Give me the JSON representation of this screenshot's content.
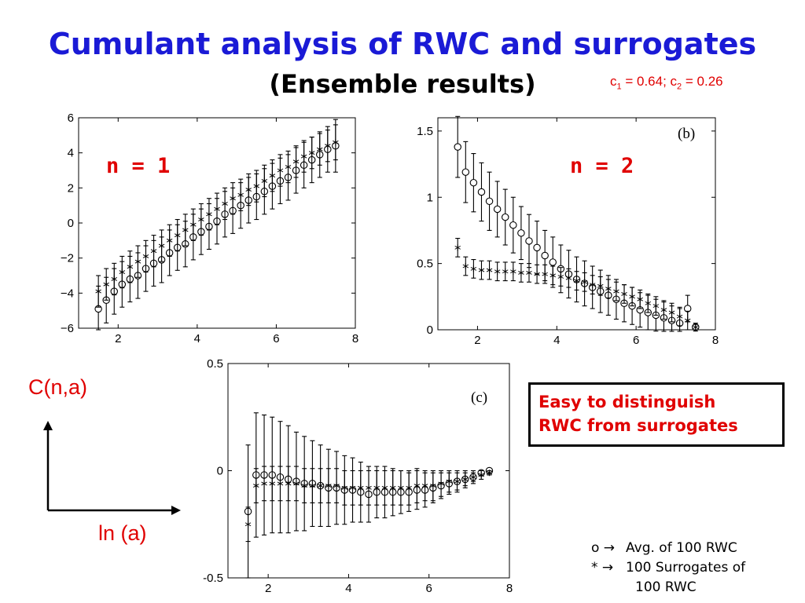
{
  "slide": {
    "title": "Cumulant analysis of RWC and surrogates",
    "subtitle": "(Ensemble results)",
    "params": {
      "c1": "0.64",
      "c2": "0.26"
    },
    "callout": [
      "Easy to distinguish",
      "RWC from surrogates"
    ],
    "axis_y_label": "C(n,a)",
    "axis_x_label": "ln (a)",
    "legend": [
      {
        "symbol": "o →",
        "text": "Avg. of 100 RWC"
      },
      {
        "symbol": "* →",
        "text": "100 Surrogates of",
        "continuation": "100 RWC"
      }
    ]
  },
  "chart_data": [
    {
      "type": "scatter",
      "label": "n = 1",
      "x": [
        1.5,
        1.7,
        1.9,
        2.1,
        2.3,
        2.5,
        2.7,
        2.9,
        3.1,
        3.3,
        3.5,
        3.7,
        3.9,
        4.1,
        4.3,
        4.5,
        4.7,
        4.9,
        5.1,
        5.3,
        5.5,
        5.7,
        5.9,
        6.1,
        6.3,
        6.5,
        6.7,
        6.9,
        7.1,
        7.3,
        7.5
      ],
      "series": [
        {
          "symbol": "o",
          "values": [
            -4.9,
            -4.4,
            -3.9,
            -3.5,
            -3.2,
            -3.0,
            -2.6,
            -2.3,
            -2.1,
            -1.7,
            -1.4,
            -1.2,
            -0.8,
            -0.5,
            -0.2,
            0.1,
            0.5,
            0.7,
            1.0,
            1.3,
            1.5,
            1.8,
            2.1,
            2.4,
            2.6,
            3.0,
            3.3,
            3.6,
            3.9,
            4.2,
            4.4
          ],
          "err": [
            1.3,
            1.3,
            1.3,
            1.3,
            1.3,
            1.3,
            1.3,
            1.3,
            1.3,
            1.3,
            1.3,
            1.3,
            1.3,
            1.3,
            1.3,
            1.3,
            1.3,
            1.3,
            1.3,
            1.3,
            1.3,
            1.3,
            1.3,
            1.3,
            1.3,
            1.3,
            1.3,
            1.3,
            1.3,
            1.3,
            1.5
          ]
        },
        {
          "symbol": "*",
          "values": [
            -3.9,
            -3.5,
            -3.2,
            -2.8,
            -2.5,
            -2.2,
            -1.9,
            -1.6,
            -1.3,
            -1.0,
            -0.7,
            -0.4,
            -0.1,
            0.2,
            0.5,
            0.8,
            1.1,
            1.4,
            1.6,
            1.9,
            2.1,
            2.4,
            2.7,
            3.0,
            3.2,
            3.5,
            3.8,
            4.0,
            4.2,
            4.4,
            4.6
          ],
          "err": [
            0.9,
            0.9,
            0.9,
            0.9,
            0.9,
            0.9,
            0.9,
            0.9,
            0.9,
            0.9,
            0.9,
            0.9,
            0.9,
            0.9,
            0.9,
            0.9,
            0.9,
            0.9,
            0.9,
            0.9,
            0.9,
            0.9,
            0.9,
            0.9,
            0.9,
            0.9,
            0.9,
            0.9,
            0.9,
            0.9,
            1.0
          ]
        }
      ],
      "xlim": [
        1,
        8
      ],
      "ylim": [
        -6,
        6
      ],
      "xticks": [
        "2",
        "4",
        "6",
        "8"
      ],
      "yticks": [
        "−6",
        "−4",
        "−2",
        "0",
        "2",
        "4",
        "6"
      ]
    },
    {
      "type": "scatter",
      "label": "n = 2",
      "panel": "(b)",
      "x": [
        1.5,
        1.7,
        1.9,
        2.1,
        2.3,
        2.5,
        2.7,
        2.9,
        3.1,
        3.3,
        3.5,
        3.7,
        3.9,
        4.1,
        4.3,
        4.5,
        4.7,
        4.9,
        5.1,
        5.3,
        5.5,
        5.7,
        5.9,
        6.1,
        6.3,
        6.5,
        6.7,
        6.9,
        7.1,
        7.3,
        7.5
      ],
      "series": [
        {
          "symbol": "o",
          "values": [
            1.38,
            1.19,
            1.11,
            1.04,
            0.97,
            0.91,
            0.85,
            0.79,
            0.73,
            0.67,
            0.62,
            0.56,
            0.51,
            0.46,
            0.42,
            0.38,
            0.35,
            0.32,
            0.29,
            0.26,
            0.23,
            0.2,
            0.18,
            0.15,
            0.13,
            0.11,
            0.09,
            0.07,
            0.05,
            0.16,
            0.02
          ],
          "err": [
            0.23,
            0.23,
            0.22,
            0.22,
            0.22,
            0.21,
            0.21,
            0.21,
            0.2,
            0.2,
            0.2,
            0.19,
            0.19,
            0.18,
            0.18,
            0.17,
            0.17,
            0.16,
            0.16,
            0.15,
            0.15,
            0.14,
            0.14,
            0.13,
            0.13,
            0.12,
            0.12,
            0.11,
            0.11,
            0.1,
            0.03
          ]
        },
        {
          "symbol": "*",
          "values": [
            0.62,
            0.48,
            0.46,
            0.45,
            0.45,
            0.44,
            0.44,
            0.44,
            0.43,
            0.43,
            0.42,
            0.42,
            0.41,
            0.4,
            0.39,
            0.37,
            0.36,
            0.34,
            0.33,
            0.31,
            0.29,
            0.27,
            0.25,
            0.23,
            0.2,
            0.18,
            0.15,
            0.13,
            0.1,
            0.07,
            0.02
          ],
          "err": [
            0.07,
            0.07,
            0.07,
            0.07,
            0.07,
            0.07,
            0.07,
            0.07,
            0.07,
            0.07,
            0.07,
            0.07,
            0.07,
            0.07,
            0.07,
            0.07,
            0.07,
            0.07,
            0.07,
            0.07,
            0.07,
            0.07,
            0.07,
            0.07,
            0.07,
            0.07,
            0.07,
            0.07,
            0.07,
            0.07,
            0.02
          ]
        }
      ],
      "xlim": [
        1,
        8
      ],
      "ylim": [
        0,
        1.6
      ],
      "xticks": [
        "2",
        "4",
        "6",
        "8"
      ],
      "yticks": [
        "0",
        "0.5",
        "1",
        "1.5"
      ]
    },
    {
      "type": "scatter",
      "panel": "(c)",
      "x": [
        1.5,
        1.7,
        1.9,
        2.1,
        2.3,
        2.5,
        2.7,
        2.9,
        3.1,
        3.3,
        3.5,
        3.7,
        3.9,
        4.1,
        4.3,
        4.5,
        4.7,
        4.9,
        5.1,
        5.3,
        5.5,
        5.7,
        5.9,
        6.1,
        6.3,
        6.5,
        6.7,
        6.9,
        7.1,
        7.3,
        7.5
      ],
      "series": [
        {
          "symbol": "o",
          "values": [
            -0.19,
            -0.02,
            -0.02,
            -0.02,
            -0.03,
            -0.04,
            -0.05,
            -0.06,
            -0.06,
            -0.07,
            -0.08,
            -0.08,
            -0.09,
            -0.09,
            -0.1,
            -0.11,
            -0.1,
            -0.1,
            -0.1,
            -0.1,
            -0.1,
            -0.09,
            -0.09,
            -0.08,
            -0.07,
            -0.06,
            -0.05,
            -0.04,
            -0.03,
            -0.01,
            0.0
          ],
          "err": [
            0.31,
            0.29,
            0.28,
            0.27,
            0.26,
            0.25,
            0.23,
            0.22,
            0.2,
            0.19,
            0.18,
            0.17,
            0.16,
            0.15,
            0.14,
            0.13,
            0.12,
            0.12,
            0.11,
            0.1,
            0.09,
            0.09,
            0.08,
            0.07,
            0.06,
            0.05,
            0.04,
            0.03,
            0.02,
            0.01,
            0.0
          ]
        },
        {
          "symbol": "*",
          "values": [
            -0.25,
            -0.07,
            -0.06,
            -0.06,
            -0.06,
            -0.06,
            -0.06,
            -0.07,
            -0.07,
            -0.07,
            -0.07,
            -0.07,
            -0.08,
            -0.08,
            -0.08,
            -0.08,
            -0.08,
            -0.08,
            -0.08,
            -0.08,
            -0.08,
            -0.07,
            -0.07,
            -0.07,
            -0.06,
            -0.05,
            -0.05,
            -0.04,
            -0.03,
            -0.02,
            -0.01
          ],
          "err": [
            0.08,
            0.08,
            0.08,
            0.08,
            0.08,
            0.08,
            0.08,
            0.08,
            0.08,
            0.08,
            0.08,
            0.08,
            0.08,
            0.08,
            0.08,
            0.08,
            0.08,
            0.08,
            0.08,
            0.08,
            0.08,
            0.08,
            0.07,
            0.07,
            0.06,
            0.05,
            0.05,
            0.04,
            0.03,
            0.02,
            0.01
          ]
        }
      ],
      "xlim": [
        1,
        8
      ],
      "ylim": [
        -0.5,
        0.5
      ],
      "xticks": [
        "2",
        "4",
        "6",
        "8"
      ],
      "yticks": [
        "-0.5",
        "0",
        "0.5"
      ]
    }
  ]
}
